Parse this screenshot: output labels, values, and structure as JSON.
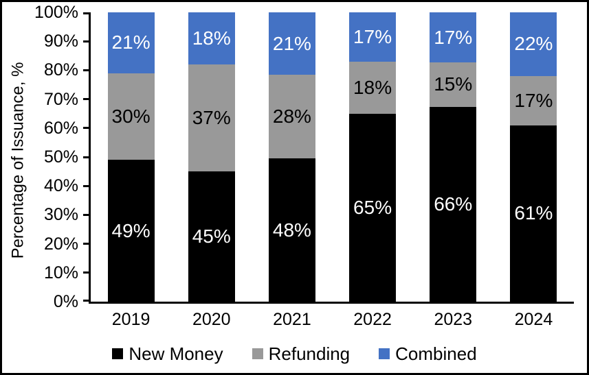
{
  "chart_data": {
    "type": "bar",
    "stacked": true,
    "title": "",
    "xlabel": "",
    "ylabel": "Percentage of Issuance, %",
    "ylim": [
      0,
      100
    ],
    "grid": false,
    "legend_position": "bottom",
    "data_label_format": "{value}%",
    "categories": [
      "2019",
      "2020",
      "2021",
      "2022",
      "2023",
      "2024"
    ],
    "y_ticks": [
      "0%",
      "10%",
      "20%",
      "30%",
      "40%",
      "50%",
      "60%",
      "70%",
      "80%",
      "90%",
      "100%"
    ],
    "series": [
      {
        "name": "New Money",
        "color": "#000000",
        "label_color": "#ffffff",
        "values": [
          49,
          45,
          48,
          65,
          66,
          61
        ]
      },
      {
        "name": "Refunding",
        "color": "#999999",
        "label_color": "#000000",
        "values": [
          30,
          37,
          28,
          18,
          15,
          17
        ]
      },
      {
        "name": "Combined",
        "color": "#4472C4",
        "label_color": "#ffffff",
        "values": [
          21,
          18,
          21,
          17,
          17,
          22
        ]
      }
    ],
    "colors": {
      "axis": "#000000",
      "background": "#ffffff",
      "border": "#000000"
    }
  }
}
